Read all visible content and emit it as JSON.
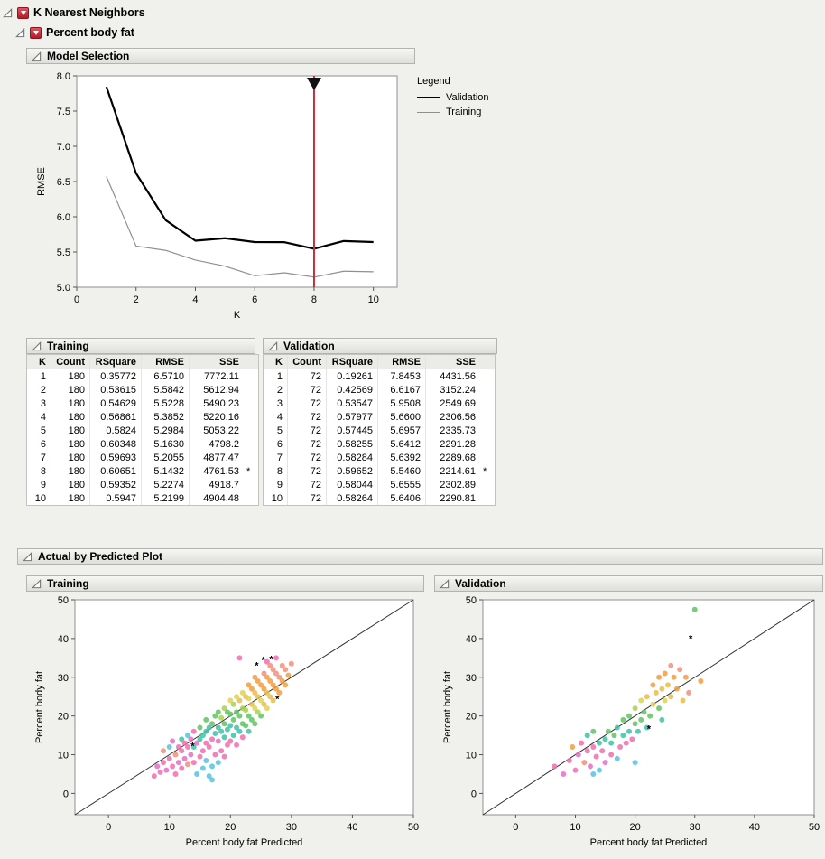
{
  "outlines": {
    "root_title": "K Nearest Neighbors",
    "response_title": "Percent body fat",
    "model_selection_title": "Model Selection",
    "training_table_title": "Training",
    "validation_table_title": "Validation",
    "abp_title": "Actual by Predicted Plot",
    "training_plot_title": "Training",
    "validation_plot_title": "Validation"
  },
  "legend": {
    "title": "Legend",
    "items": [
      {
        "label": "Validation",
        "color": "#000000"
      },
      {
        "label": "Training",
        "color": "#8f8f8f"
      }
    ]
  },
  "tables": {
    "columns": [
      "K",
      "Count",
      "RSquare",
      "RMSE",
      "SSE"
    ],
    "training": {
      "rows": [
        [
          "1",
          "180",
          "0.35772",
          "6.5710",
          "7772.11",
          ""
        ],
        [
          "2",
          "180",
          "0.53615",
          "5.5842",
          "5612.94",
          ""
        ],
        [
          "3",
          "180",
          "0.54629",
          "5.5228",
          "5490.23",
          ""
        ],
        [
          "4",
          "180",
          "0.56861",
          "5.3852",
          "5220.16",
          ""
        ],
        [
          "5",
          "180",
          "0.5824",
          "5.2984",
          "5053.22",
          ""
        ],
        [
          "6",
          "180",
          "0.60348",
          "5.1630",
          "4798.2",
          ""
        ],
        [
          "7",
          "180",
          "0.59693",
          "5.2055",
          "4877.47",
          ""
        ],
        [
          "8",
          "180",
          "0.60651",
          "5.1432",
          "4761.53",
          "*"
        ],
        [
          "9",
          "180",
          "0.59352",
          "5.2274",
          "4918.7",
          ""
        ],
        [
          "10",
          "180",
          "0.5947",
          "5.2199",
          "4904.48",
          ""
        ]
      ]
    },
    "validation": {
      "rows": [
        [
          "1",
          "72",
          "0.19261",
          "7.8453",
          "4431.56",
          ""
        ],
        [
          "2",
          "72",
          "0.42569",
          "6.6167",
          "3152.24",
          ""
        ],
        [
          "3",
          "72",
          "0.53547",
          "5.9508",
          "2549.69",
          ""
        ],
        [
          "4",
          "72",
          "0.57977",
          "5.6600",
          "2306.56",
          ""
        ],
        [
          "5",
          "72",
          "0.57445",
          "5.6957",
          "2335.73",
          ""
        ],
        [
          "6",
          "72",
          "0.58255",
          "5.6412",
          "2291.28",
          ""
        ],
        [
          "7",
          "72",
          "0.58284",
          "5.6392",
          "2289.68",
          ""
        ],
        [
          "8",
          "72",
          "0.59652",
          "5.5460",
          "2214.61",
          "*"
        ],
        [
          "9",
          "72",
          "0.58044",
          "5.6555",
          "2302.89",
          ""
        ],
        [
          "10",
          "72",
          "0.58264",
          "5.6406",
          "2290.81",
          ""
        ]
      ]
    }
  },
  "marker_palette": {
    "pink": "#ef6fae",
    "magenta": "#e070c8",
    "salmon": "#f28f7a",
    "orange": "#f09d3f",
    "amber": "#e7bd4a",
    "yellow": "#dfd44c",
    "yellowgreen": "#a8d14f",
    "green": "#5fc464",
    "teal": "#3fc2a6",
    "cyan": "#55c4e0",
    "blue": "#6d93dd",
    "purple": "#9a74d8"
  },
  "chart_data": [
    {
      "id": "model-selection",
      "type": "line",
      "xlabel": "K",
      "ylabel": "RMSE",
      "x": [
        1,
        2,
        3,
        4,
        5,
        6,
        7,
        8,
        9,
        10
      ],
      "series": [
        {
          "name": "Validation",
          "color": "#000000",
          "width": 2.2,
          "values": [
            7.8453,
            6.6167,
            5.9508,
            5.66,
            5.6957,
            5.6412,
            5.6392,
            5.546,
            5.6555,
            5.6406
          ]
        },
        {
          "name": "Training",
          "color": "#8f8f8f",
          "width": 1.2,
          "values": [
            6.571,
            5.5842,
            5.5228,
            5.3852,
            5.2984,
            5.163,
            5.2055,
            5.1432,
            5.2274,
            5.2199
          ]
        }
      ],
      "xlim": [
        0,
        10.8
      ],
      "ylim": [
        5,
        8
      ],
      "xticks": [
        0,
        2,
        4,
        6,
        8,
        10
      ],
      "yticks": [
        5.0,
        5.5,
        6.0,
        6.5,
        7.0,
        7.5,
        8.0
      ],
      "ydec": 1,
      "selector": {
        "x": 8,
        "line_color": "#cc2a3e",
        "handle_color": "#111111"
      }
    },
    {
      "id": "scatter-training",
      "type": "scatter",
      "xlabel": "Percent body fat Predicted",
      "ylabel": "Percent body fat",
      "xlim": [
        -5.5,
        50
      ],
      "ylim": [
        -5.5,
        50
      ],
      "ticks": [
        0,
        10,
        20,
        30,
        40,
        50
      ],
      "diagonal": true,
      "points": [
        [
          7.5,
          4.5,
          "pink"
        ],
        [
          8,
          7,
          "magenta"
        ],
        [
          8.5,
          5.5,
          "pink"
        ],
        [
          9,
          8,
          "pink"
        ],
        [
          9,
          11,
          "salmon"
        ],
        [
          9.5,
          6,
          "magenta"
        ],
        [
          10,
          9,
          "pink"
        ],
        [
          10,
          12,
          "cyan"
        ],
        [
          10.5,
          7,
          "pink"
        ],
        [
          10.5,
          13.5,
          "magenta"
        ],
        [
          11,
          5,
          "pink"
        ],
        [
          11,
          10,
          "salmon"
        ],
        [
          11.5,
          12,
          "pink"
        ],
        [
          11.5,
          8,
          "magenta"
        ],
        [
          12,
          11,
          "pink"
        ],
        [
          12,
          14,
          "teal"
        ],
        [
          12,
          6.5,
          "pink"
        ],
        [
          12.5,
          9,
          "magenta"
        ],
        [
          12.5,
          13,
          "pink"
        ],
        [
          13,
          7.5,
          "salmon"
        ],
        [
          13,
          12,
          "pink"
        ],
        [
          13,
          15,
          "cyan"
        ],
        [
          13.5,
          10,
          "magenta"
        ],
        [
          13.5,
          14,
          "pink"
        ],
        [
          14,
          8,
          "pink"
        ],
        [
          14,
          12,
          "teal"
        ],
        [
          14,
          16,
          "pink"
        ],
        [
          14.5,
          5,
          "cyan"
        ],
        [
          14.5,
          13,
          "magenta"
        ],
        [
          15,
          9.5,
          "pink"
        ],
        [
          15,
          14,
          "teal"
        ],
        [
          15,
          17,
          "green"
        ],
        [
          15.5,
          6.5,
          "cyan"
        ],
        [
          15.5,
          11,
          "pink"
        ],
        [
          15.5,
          15,
          "teal"
        ],
        [
          16,
          8.5,
          "cyan"
        ],
        [
          16,
          13,
          "pink"
        ],
        [
          16,
          16,
          "teal"
        ],
        [
          16,
          19,
          "green"
        ],
        [
          16.5,
          4.5,
          "cyan"
        ],
        [
          16.5,
          12,
          "pink"
        ],
        [
          16.5,
          17,
          "teal"
        ],
        [
          17,
          7,
          "cyan"
        ],
        [
          17,
          14,
          "pink"
        ],
        [
          17,
          18,
          "green"
        ],
        [
          17.5,
          10,
          "pink"
        ],
        [
          17.5,
          15.5,
          "teal"
        ],
        [
          17.5,
          20,
          "green"
        ],
        [
          18,
          8,
          "cyan"
        ],
        [
          18,
          13.5,
          "magenta"
        ],
        [
          18,
          17,
          "teal"
        ],
        [
          18,
          21,
          "green"
        ],
        [
          18.5,
          11,
          "pink"
        ],
        [
          18.5,
          16,
          "teal"
        ],
        [
          18.5,
          19.5,
          "yellowgreen"
        ],
        [
          19,
          9.5,
          "pink"
        ],
        [
          19,
          14.5,
          "teal"
        ],
        [
          19,
          18,
          "green"
        ],
        [
          19,
          22,
          "yellowgreen"
        ],
        [
          19.5,
          12.5,
          "pink"
        ],
        [
          19.5,
          16.5,
          "teal"
        ],
        [
          19.5,
          21,
          "green"
        ],
        [
          20,
          13.5,
          "pink"
        ],
        [
          20,
          17.5,
          "teal"
        ],
        [
          20,
          20.5,
          "green"
        ],
        [
          20,
          24,
          "yellow"
        ],
        [
          20.5,
          15,
          "teal"
        ],
        [
          20.5,
          19,
          "green"
        ],
        [
          20.5,
          23,
          "yellowgreen"
        ],
        [
          21,
          12.5,
          "pink"
        ],
        [
          21,
          17,
          "teal"
        ],
        [
          21,
          21,
          "green"
        ],
        [
          21,
          25,
          "yellow"
        ],
        [
          21.5,
          16,
          "teal"
        ],
        [
          21.5,
          20,
          "green"
        ],
        [
          21.5,
          24,
          "amber"
        ],
        [
          22,
          14.5,
          "pink"
        ],
        [
          22,
          18,
          "green"
        ],
        [
          22,
          22,
          "yellowgreen"
        ],
        [
          22,
          26,
          "yellow"
        ],
        [
          22.5,
          17.5,
          "green"
        ],
        [
          22.5,
          21.5,
          "yellowgreen"
        ],
        [
          22.5,
          25,
          "amber"
        ],
        [
          23,
          16,
          "teal"
        ],
        [
          23,
          20,
          "green"
        ],
        [
          23,
          24.5,
          "yellow"
        ],
        [
          23,
          28,
          "orange"
        ],
        [
          23.5,
          19,
          "green"
        ],
        [
          23.5,
          23,
          "amber"
        ],
        [
          23.5,
          27,
          "orange"
        ],
        [
          24,
          18,
          "green"
        ],
        [
          24,
          22,
          "yellow"
        ],
        [
          24,
          26,
          "amber"
        ],
        [
          24,
          30,
          "orange"
        ],
        [
          24.5,
          21,
          "yellowgreen"
        ],
        [
          24.5,
          25,
          "amber"
        ],
        [
          24.5,
          29,
          "orange"
        ],
        [
          25,
          20,
          "green"
        ],
        [
          25,
          24,
          "yellow"
        ],
        [
          25,
          28,
          "orange"
        ],
        [
          25.5,
          23,
          "amber"
        ],
        [
          25.5,
          27,
          "orange"
        ],
        [
          25.5,
          31,
          "salmon"
        ],
        [
          26,
          22,
          "yellow"
        ],
        [
          26,
          26,
          "amber"
        ],
        [
          26,
          30,
          "orange"
        ],
        [
          26,
          34,
          "pink"
        ],
        [
          26.5,
          25,
          "amber"
        ],
        [
          26.5,
          29,
          "orange"
        ],
        [
          26.5,
          33,
          "salmon"
        ],
        [
          27,
          24,
          "amber"
        ],
        [
          27,
          28,
          "orange"
        ],
        [
          27,
          32,
          "salmon"
        ],
        [
          27.5,
          27,
          "orange"
        ],
        [
          27.5,
          31,
          "salmon"
        ],
        [
          27.5,
          35,
          "pink"
        ],
        [
          28,
          26,
          "orange"
        ],
        [
          28,
          30,
          "salmon"
        ],
        [
          28.5,
          29,
          "orange"
        ],
        [
          28.5,
          33,
          "salmon"
        ],
        [
          29,
          28,
          "orange"
        ],
        [
          29,
          32,
          "salmon"
        ],
        [
          29.5,
          30.5,
          "orange"
        ],
        [
          30,
          33.5,
          "salmon"
        ],
        [
          21.5,
          35,
          "pink"
        ],
        [
          17,
          3.5,
          "cyan"
        ]
      ],
      "asterisks": [
        [
          13.8,
          12.6,
          "pink"
        ],
        [
          24.3,
          33.3,
          "salmon"
        ],
        [
          25.4,
          34.7,
          "salmon"
        ],
        [
          26.7,
          35,
          "salmon"
        ],
        [
          27.7,
          24.7,
          "orange"
        ]
      ]
    },
    {
      "id": "scatter-validation",
      "type": "scatter",
      "xlabel": "Percent body fat Predicted",
      "ylabel": "Percent body fat",
      "xlim": [
        -5.5,
        50
      ],
      "ylim": [
        -5.5,
        50
      ],
      "ticks": [
        0,
        10,
        20,
        30,
        40,
        50
      ],
      "diagonal": true,
      "points": [
        [
          6.5,
          7,
          "pink"
        ],
        [
          8,
          5,
          "magenta"
        ],
        [
          9,
          8.5,
          "pink"
        ],
        [
          9.5,
          12,
          "orange"
        ],
        [
          10,
          6,
          "pink"
        ],
        [
          10.5,
          10,
          "magenta"
        ],
        [
          11,
          13,
          "pink"
        ],
        [
          11.5,
          8,
          "salmon"
        ],
        [
          12,
          11,
          "pink"
        ],
        [
          12,
          15,
          "teal"
        ],
        [
          12.5,
          7,
          "magenta"
        ],
        [
          13,
          12,
          "pink"
        ],
        [
          13,
          16,
          "green"
        ],
        [
          13.5,
          9.5,
          "pink"
        ],
        [
          14,
          13,
          "teal"
        ],
        [
          14,
          6,
          "cyan"
        ],
        [
          14.5,
          11,
          "pink"
        ],
        [
          15,
          14,
          "teal"
        ],
        [
          15,
          8,
          "magenta"
        ],
        [
          15.5,
          16,
          "green"
        ],
        [
          16,
          10,
          "pink"
        ],
        [
          16,
          13,
          "teal"
        ],
        [
          16.5,
          15,
          "green"
        ],
        [
          17,
          9,
          "cyan"
        ],
        [
          17,
          17,
          "teal"
        ],
        [
          17.5,
          12,
          "pink"
        ],
        [
          18,
          15,
          "teal"
        ],
        [
          18,
          19,
          "green"
        ],
        [
          18.5,
          13,
          "pink"
        ],
        [
          19,
          16,
          "teal"
        ],
        [
          19,
          20,
          "green"
        ],
        [
          19.5,
          14,
          "pink"
        ],
        [
          20,
          18,
          "green"
        ],
        [
          20,
          22,
          "yellowgreen"
        ],
        [
          20.5,
          16,
          "teal"
        ],
        [
          21,
          19,
          "green"
        ],
        [
          21,
          24,
          "yellow"
        ],
        [
          21.5,
          21,
          "green"
        ],
        [
          22,
          17,
          "teal"
        ],
        [
          22,
          25,
          "amber"
        ],
        [
          22.5,
          20,
          "green"
        ],
        [
          23,
          23,
          "yellow"
        ],
        [
          23,
          28,
          "orange"
        ],
        [
          23.5,
          26,
          "amber"
        ],
        [
          24,
          22,
          "green"
        ],
        [
          24,
          30,
          "orange"
        ],
        [
          24.5,
          27,
          "amber"
        ],
        [
          25,
          24,
          "yellow"
        ],
        [
          25,
          31,
          "orange"
        ],
        [
          25.5,
          28,
          "amber"
        ],
        [
          26,
          25,
          "amber"
        ],
        [
          26,
          33,
          "salmon"
        ],
        [
          26.5,
          30,
          "orange"
        ],
        [
          27,
          27,
          "orange"
        ],
        [
          27.5,
          32,
          "salmon"
        ],
        [
          28,
          24,
          "amber"
        ],
        [
          28.5,
          30,
          "orange"
        ],
        [
          29,
          26,
          "salmon"
        ],
        [
          30,
          47.5,
          "green"
        ],
        [
          31,
          29,
          "orange"
        ],
        [
          20,
          8,
          "cyan"
        ],
        [
          13,
          5,
          "cyan"
        ],
        [
          24.5,
          19,
          "teal"
        ]
      ],
      "asterisks": [
        [
          29.3,
          40.3,
          "purple"
        ],
        [
          22.3,
          17,
          "blue"
        ]
      ]
    }
  ]
}
